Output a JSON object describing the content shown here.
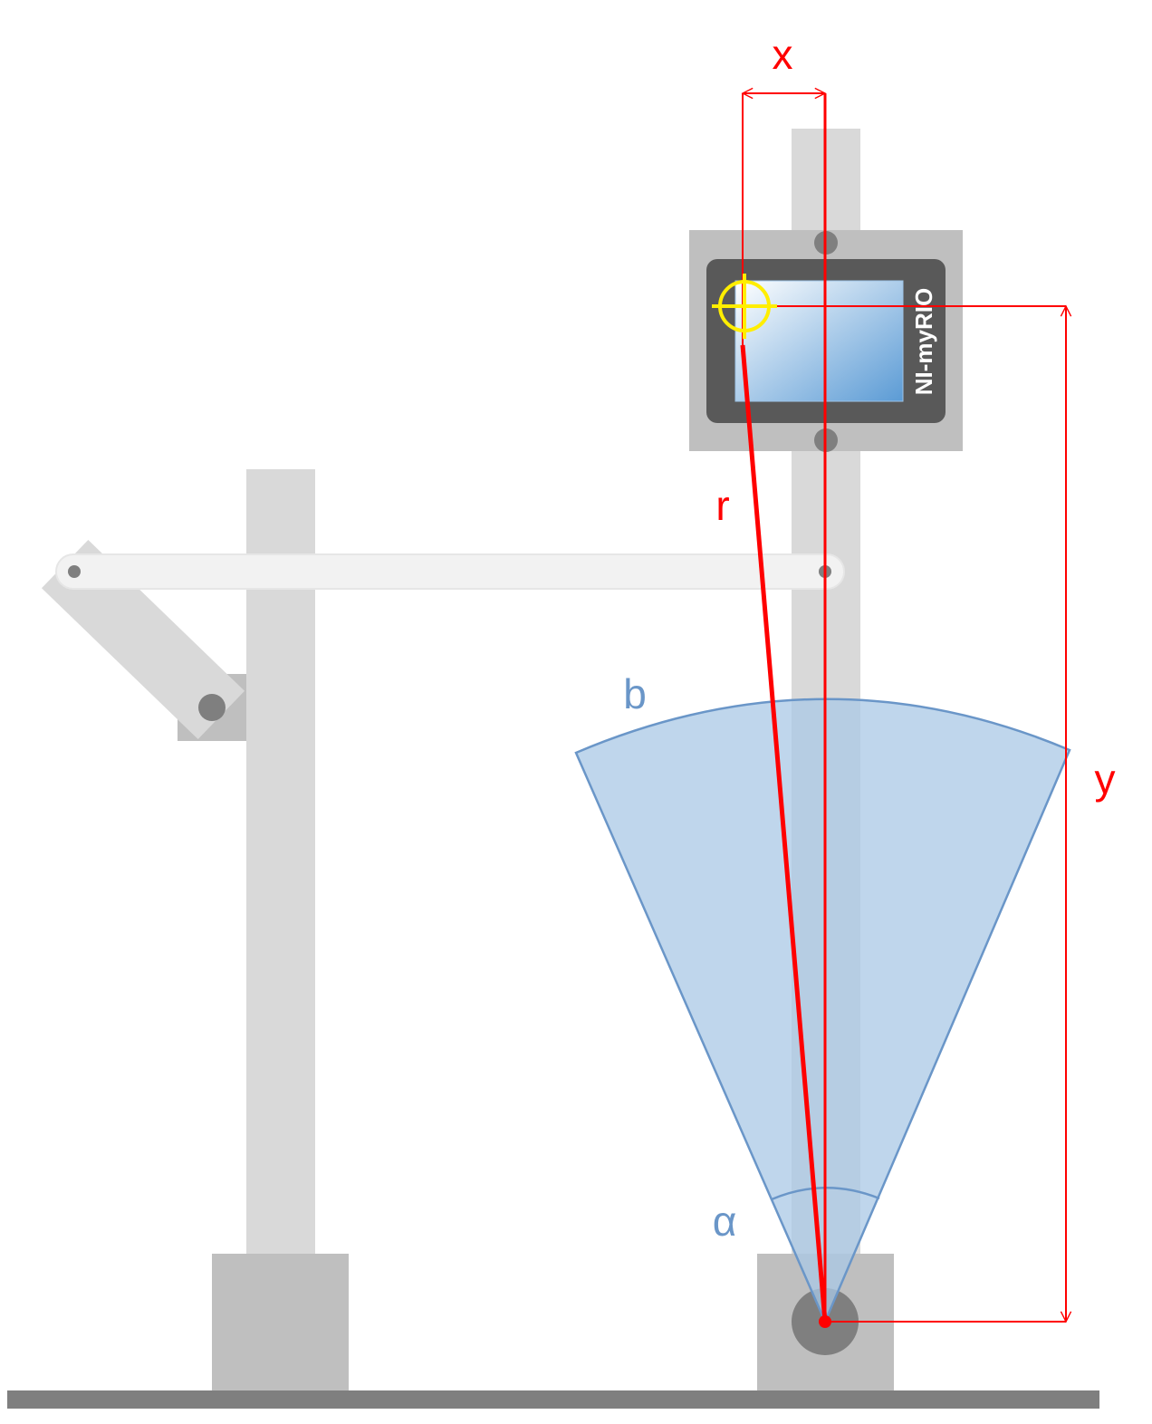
{
  "labels": {
    "x": "x",
    "y": "y",
    "r": "r",
    "b": "b",
    "alpha": "α"
  },
  "device": {
    "name": "NI-myRIO"
  },
  "colors": {
    "measure": "#ff0000",
    "sector": "#6a96c8",
    "sector_fill": "#a9c8e6",
    "target": "#ffee00",
    "frame_light": "#d9d9d9",
    "frame_mid": "#bfbfbf",
    "frame_dark": "#808080",
    "device_body": "#595959",
    "screen_start": "#ffffff",
    "screen_end": "#5b9bd5",
    "arm": "#f2f2f2",
    "ground": "#7f7f7f"
  },
  "icons": {
    "target": "crosshair-target-icon"
  }
}
